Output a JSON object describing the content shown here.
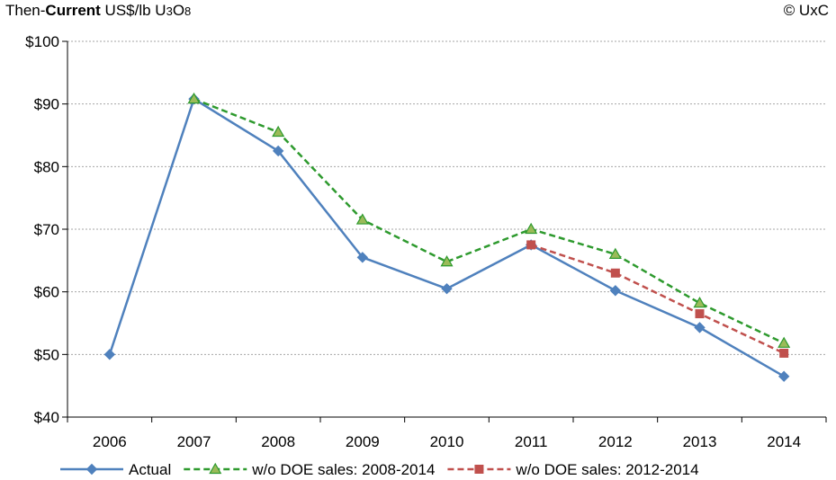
{
  "header": {
    "units_prefix": "Then-",
    "units_bold": "Current",
    "units_rest": " US$/lb U",
    "units_sub1": "3",
    "units_o": "O",
    "units_sub2": "8",
    "copyright": "© UxC"
  },
  "chart_data": {
    "type": "line",
    "x": [
      "2006",
      "2007",
      "2008",
      "2009",
      "2010",
      "2011",
      "2012",
      "2013",
      "2014"
    ],
    "ylim": [
      40,
      100
    ],
    "yticks": [
      40,
      50,
      60,
      70,
      80,
      90,
      100
    ],
    "ytick_labels": [
      "$40",
      "$50",
      "$60",
      "$70",
      "$80",
      "$90",
      "$100"
    ],
    "grid": true,
    "legend_position": "bottom",
    "series": [
      {
        "name": "Actual",
        "color": "#4f81bd",
        "marker": "diamond",
        "dash": "solid",
        "values": [
          50.0,
          90.8,
          82.5,
          65.5,
          60.5,
          67.5,
          60.2,
          54.3,
          46.5
        ]
      },
      {
        "name": "w/o DOE sales: 2008-2014",
        "color": "#2e9a2e",
        "marker_fill": "#9bbb59",
        "marker": "triangle",
        "dash": "dashed",
        "values": [
          null,
          90.8,
          85.5,
          71.5,
          64.8,
          70.0,
          66.0,
          58.2,
          51.8
        ]
      },
      {
        "name": "w/o DOE sales: 2012-2014",
        "color": "#c0504d",
        "marker": "square",
        "dash": "dashed",
        "values": [
          null,
          null,
          null,
          null,
          null,
          67.5,
          63.0,
          56.5,
          50.2
        ]
      }
    ]
  }
}
